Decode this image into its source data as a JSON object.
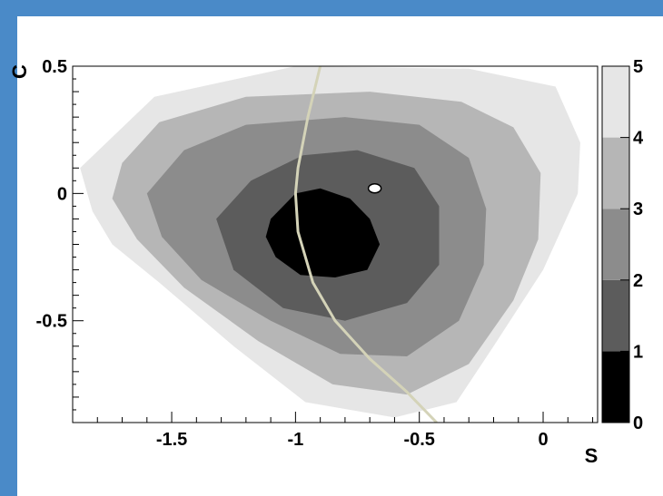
{
  "colors": {
    "frame_border": "#4a8ac8",
    "background": "#ffffff",
    "band_0_1": "#000000",
    "band_1_2": "#5c5c5c",
    "band_2_3": "#8c8c8c",
    "band_3_4": "#b6b6b6",
    "band_4_5": "#e6e6e6",
    "curve": "#d4d3b8",
    "marker": "#ffffff"
  },
  "chart_data": {
    "type": "heatmap",
    "title": "",
    "xlabel": "S",
    "ylabel": "C",
    "xlim": [
      -1.9,
      0.22
    ],
    "ylim": [
      -0.9,
      0.5
    ],
    "x_ticks": [
      {
        "value": -1.5,
        "label": "-1.5"
      },
      {
        "value": -1,
        "label": "-1"
      },
      {
        "value": -0.5,
        "label": "-0.5"
      },
      {
        "value": 0,
        "label": "0"
      }
    ],
    "y_ticks": [
      {
        "value": 0.5,
        "label": "0.5"
      },
      {
        "value": 0,
        "label": "0"
      },
      {
        "value": -0.5,
        "label": "-0.5"
      }
    ],
    "colorbar": {
      "range": [
        0,
        5
      ],
      "ticks": [
        {
          "value": 0,
          "label": "0"
        },
        {
          "value": 1,
          "label": "1"
        },
        {
          "value": 2,
          "label": "2"
        },
        {
          "value": 3,
          "label": "3"
        },
        {
          "value": 4,
          "label": "4"
        },
        {
          "value": 5,
          "label": "5"
        }
      ]
    },
    "contour_bands": [
      {
        "range": [
          4,
          5
        ],
        "polygon": [
          [
            -1.57,
            0.38
          ],
          [
            -1.0,
            0.5
          ],
          [
            -0.3,
            0.49
          ],
          [
            0.05,
            0.42
          ],
          [
            0.15,
            0.2
          ],
          [
            0.14,
            0.0
          ],
          [
            0.0,
            -0.3
          ],
          [
            -0.2,
            -0.6
          ],
          [
            -0.35,
            -0.82
          ],
          [
            -0.6,
            -0.88
          ],
          [
            -0.96,
            -0.82
          ],
          [
            -1.25,
            -0.6
          ],
          [
            -1.55,
            -0.35
          ],
          [
            -1.74,
            -0.2
          ],
          [
            -1.82,
            -0.07
          ],
          [
            -1.87,
            0.1
          ]
        ]
      },
      {
        "range": [
          3,
          4
        ],
        "polygon": [
          [
            -1.7,
            0.12
          ],
          [
            -1.55,
            0.28
          ],
          [
            -1.2,
            0.38
          ],
          [
            -0.7,
            0.4
          ],
          [
            -0.33,
            0.36
          ],
          [
            -0.12,
            0.26
          ],
          [
            -0.01,
            0.08
          ],
          [
            -0.02,
            -0.18
          ],
          [
            -0.12,
            -0.42
          ],
          [
            -0.3,
            -0.67
          ],
          [
            -0.55,
            -0.79
          ],
          [
            -0.85,
            -0.75
          ],
          [
            -1.15,
            -0.58
          ],
          [
            -1.45,
            -0.37
          ],
          [
            -1.64,
            -0.18
          ],
          [
            -1.74,
            -0.02
          ]
        ]
      },
      {
        "range": [
          2,
          3
        ],
        "polygon": [
          [
            -1.6,
            0.0
          ],
          [
            -1.45,
            0.17
          ],
          [
            -1.2,
            0.27
          ],
          [
            -0.8,
            0.3
          ],
          [
            -0.5,
            0.27
          ],
          [
            -0.3,
            0.14
          ],
          [
            -0.23,
            -0.06
          ],
          [
            -0.24,
            -0.28
          ],
          [
            -0.34,
            -0.5
          ],
          [
            -0.55,
            -0.64
          ],
          [
            -0.82,
            -0.63
          ],
          [
            -1.1,
            -0.5
          ],
          [
            -1.38,
            -0.34
          ],
          [
            -1.54,
            -0.17
          ]
        ]
      },
      {
        "range": [
          1,
          2
        ],
        "polygon": [
          [
            -1.32,
            -0.1
          ],
          [
            -1.18,
            0.05
          ],
          [
            -0.97,
            0.15
          ],
          [
            -0.75,
            0.17
          ],
          [
            -0.52,
            0.1
          ],
          [
            -0.42,
            -0.05
          ],
          [
            -0.42,
            -0.28
          ],
          [
            -0.55,
            -0.43
          ],
          [
            -0.8,
            -0.5
          ],
          [
            -1.05,
            -0.45
          ],
          [
            -1.25,
            -0.3
          ]
        ]
      },
      {
        "range": [
          0,
          1
        ],
        "polygon": [
          [
            -1.1,
            -0.1
          ],
          [
            -1.0,
            0.0
          ],
          [
            -0.9,
            0.02
          ],
          [
            -0.78,
            -0.02
          ],
          [
            -0.7,
            -0.1
          ],
          [
            -0.66,
            -0.2
          ],
          [
            -0.71,
            -0.3
          ],
          [
            -0.84,
            -0.33
          ],
          [
            -0.98,
            -0.32
          ],
          [
            -1.08,
            -0.25
          ],
          [
            -1.12,
            -0.17
          ]
        ]
      }
    ],
    "curve": {
      "name": "",
      "points": [
        [
          -0.9,
          0.5
        ],
        [
          -0.95,
          0.3
        ],
        [
          -0.99,
          0.1
        ],
        [
          -1.0,
          0.0
        ],
        [
          -0.99,
          -0.15
        ],
        [
          -0.93,
          -0.35
        ],
        [
          -0.84,
          -0.5
        ],
        [
          -0.7,
          -0.65
        ],
        [
          -0.55,
          -0.78
        ],
        [
          -0.43,
          -0.9
        ]
      ]
    },
    "marker": {
      "x": -0.68,
      "y": 0.02
    },
    "grid": false,
    "legend": "colorbar-right"
  }
}
